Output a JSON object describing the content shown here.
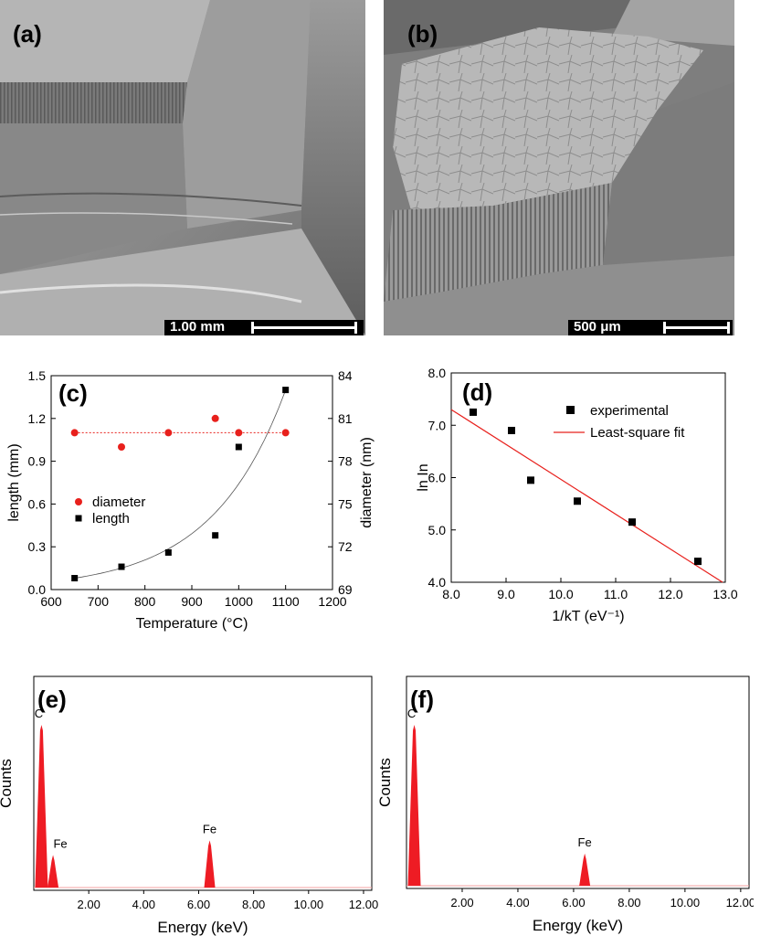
{
  "panels": {
    "a": {
      "label": "(a)",
      "scale_text": "1.00 mm"
    },
    "b": {
      "label": "(b)",
      "scale_text": "500 μm"
    }
  },
  "colors": {
    "red": "#e8201c",
    "black": "#000000",
    "spectrum": "#ee1c24"
  },
  "chart_data": [
    {
      "id": "c",
      "type": "scatter",
      "panel_label": "(c)",
      "xlabel": "Temperature (°C)",
      "ylabel": "length (mm)",
      "ylabel_right": "diameter (nm)",
      "xlim": [
        600,
        1200
      ],
      "ylim": [
        0,
        1.5
      ],
      "ylim_right": [
        69,
        84
      ],
      "xticks": [
        "600",
        "700",
        "800",
        "900",
        "1000",
        "1100",
        "1200"
      ],
      "yticks": [
        "0.0",
        "0.3",
        "0.6",
        "0.9",
        "1.2",
        "1.5"
      ],
      "yticks_right": [
        "69",
        "72",
        "75",
        "78",
        "81",
        "84"
      ],
      "legend": [
        "diameter",
        "length"
      ],
      "series": [
        {
          "name": "diameter",
          "axis": "right",
          "color": "#e8201c",
          "x": [
            650,
            750,
            850,
            950,
            1000,
            1100
          ],
          "y": [
            80,
            79,
            80,
            81,
            80,
            80
          ]
        },
        {
          "name": "length",
          "axis": "left",
          "color": "#000000",
          "x": [
            650,
            750,
            850,
            950,
            1000,
            1100
          ],
          "y": [
            0.08,
            0.16,
            0.26,
            0.38,
            1.0,
            1.4
          ]
        }
      ]
    },
    {
      "id": "d",
      "type": "scatter",
      "panel_label": "(d)",
      "xlabel": "1/kT (eV⁻¹)",
      "ylabel": "ln In",
      "xlim": [
        8.0,
        13.0
      ],
      "ylim": [
        4.0,
        8.0
      ],
      "xticks": [
        "8.0",
        "9.0",
        "10.0",
        "11.0",
        "12.0",
        "13.0"
      ],
      "yticks": [
        "4.0",
        "5.0",
        "6.0",
        "7.0",
        "8.0"
      ],
      "legend": [
        "experimental",
        "Least-square fit"
      ],
      "series": [
        {
          "name": "experimental",
          "color": "#000000",
          "x": [
            8.4,
            9.1,
            9.45,
            10.3,
            11.3,
            12.5
          ],
          "y": [
            7.25,
            6.9,
            5.95,
            5.55,
            5.15,
            4.4
          ]
        }
      ],
      "fit": {
        "color": "#e8201c",
        "x": [
          8.0,
          12.95
        ],
        "y": [
          7.3,
          4.0
        ]
      }
    },
    {
      "id": "e",
      "type": "area",
      "panel_label": "(e)",
      "xlabel": "Energy (keV)",
      "ylabel": "Counts",
      "xlim": [
        0,
        12.3
      ],
      "xticks": [
        "2.00",
        "4.00",
        "6.00",
        "8.00",
        "10.00",
        "12.00"
      ],
      "peaks": [
        {
          "label": "C",
          "energy": 0.28,
          "height": 1.0
        },
        {
          "label": "Fe",
          "energy": 0.7,
          "height": 0.2
        },
        {
          "label": "Fe",
          "energy": 6.4,
          "height": 0.29
        }
      ]
    },
    {
      "id": "f",
      "type": "area",
      "panel_label": "(f)",
      "xlabel": "Energy (keV)",
      "ylabel": "Counts",
      "xlim": [
        0,
        12.3
      ],
      "xticks": [
        "2.00",
        "4.00",
        "6.00",
        "8.00",
        "10.00",
        "12.00"
      ],
      "peaks": [
        {
          "label": "C",
          "energy": 0.28,
          "height": 1.0
        },
        {
          "label": "Fe",
          "energy": 6.4,
          "height": 0.2
        }
      ]
    }
  ]
}
